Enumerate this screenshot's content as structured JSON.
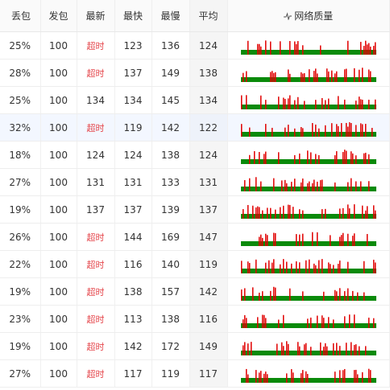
{
  "table": {
    "header": [
      "丢包",
      "发包",
      "最新",
      "最快",
      "最慢",
      "平均",
      "网络质量"
    ],
    "rows": [
      [
        "25%",
        "100",
        "超时",
        "123",
        "136",
        "124"
      ],
      [
        "28%",
        "100",
        "超时",
        "137",
        "149",
        "138"
      ],
      [
        "25%",
        "100",
        "134",
        "134",
        "145",
        "134"
      ],
      [
        "32%",
        "100",
        "超时",
        "119",
        "142",
        "122"
      ],
      [
        "18%",
        "100",
        "124",
        "124",
        "138",
        "124"
      ],
      [
        "27%",
        "100",
        "131",
        "131",
        "133",
        "131"
      ],
      [
        "19%",
        "100",
        "137",
        "137",
        "139",
        "137"
      ],
      [
        "26%",
        "100",
        "超时",
        "144",
        "169",
        "147"
      ],
      [
        "22%",
        "100",
        "超时",
        "116",
        "140",
        "119"
      ],
      [
        "19%",
        "100",
        "超时",
        "138",
        "157",
        "142"
      ],
      [
        "23%",
        "100",
        "超时",
        "113",
        "138",
        "116"
      ],
      [
        "19%",
        "100",
        "超时",
        "142",
        "172",
        "149"
      ],
      [
        "27%",
        "100",
        "超时",
        "117",
        "119",
        "117"
      ]
    ]
  }
}
